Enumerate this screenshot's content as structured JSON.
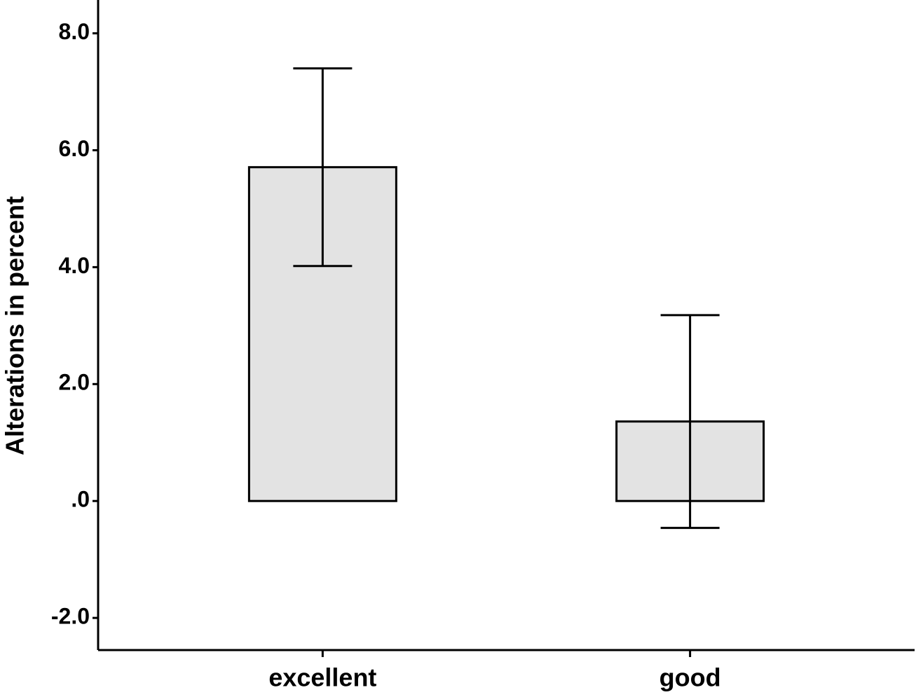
{
  "chart_data": {
    "type": "bar",
    "y_label": "Alterations in percent",
    "categories": [
      "excellent",
      "good"
    ],
    "values": [
      5.71,
      1.36
    ],
    "errors": [
      1.69,
      1.82
    ],
    "color": "#e3e3e3",
    "ylim": [
      -2.55,
      8.57
    ],
    "yticks": [
      {
        "value": -2,
        "label": "-2.0"
      },
      {
        "value": 0,
        "label": ".0"
      },
      {
        "value": 2,
        "label": "2.0"
      },
      {
        "value": 4,
        "label": "4.0"
      },
      {
        "value": 6,
        "label": "6.0"
      },
      {
        "value": 8,
        "label": "8.0"
      }
    ],
    "grid": false
  }
}
